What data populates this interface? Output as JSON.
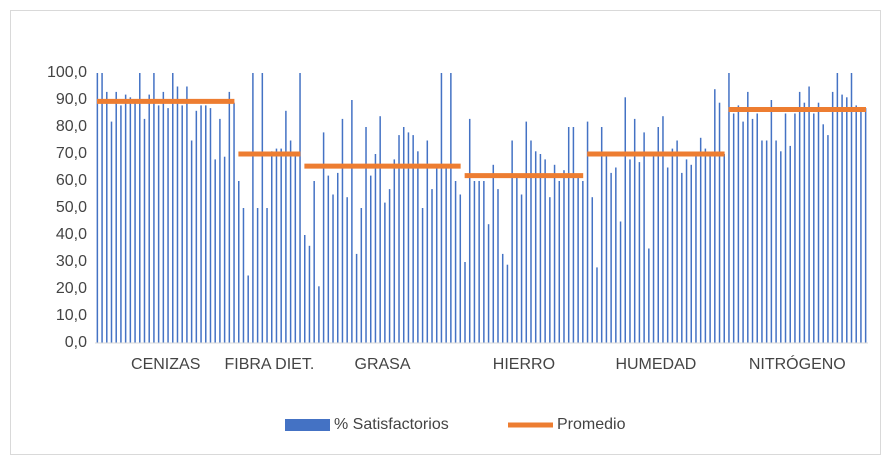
{
  "chart_data": {
    "type": "bar",
    "categories": [
      "CENIZAS",
      "FIBRA DIET.",
      "GRASA",
      "HIERRO",
      "HUMEDAD",
      "NITRÓGENO"
    ],
    "series": [
      {
        "name": "% Satisfactorios",
        "color": "#4472c4",
        "values": [
          [
            100,
            100,
            93,
            82,
            93,
            88,
            92,
            91,
            90,
            100,
            83,
            92,
            100,
            88,
            93,
            87,
            100,
            95,
            88,
            95,
            75,
            86,
            88,
            88,
            87,
            68,
            83,
            69,
            93,
            89
          ],
          [
            60,
            50,
            25,
            100,
            50,
            100,
            50,
            71,
            72,
            72,
            86,
            75,
            70,
            100
          ],
          [
            40,
            36,
            60,
            21,
            78,
            62,
            55,
            63,
            83,
            54,
            90,
            33,
            50,
            80,
            62,
            70,
            84,
            52,
            57,
            68,
            77,
            80,
            78,
            77,
            71,
            50,
            75,
            57,
            65,
            100,
            65,
            100,
            60,
            55
          ],
          [
            30,
            83,
            60,
            60,
            60,
            44,
            66,
            57,
            33,
            29,
            75,
            62,
            55,
            82,
            75,
            71,
            70,
            68,
            54,
            66,
            60,
            64,
            80,
            80,
            62,
            60
          ],
          [
            82,
            54,
            28,
            80,
            70,
            63,
            65,
            45,
            91,
            68,
            83,
            67,
            78,
            35,
            70,
            80,
            84,
            65,
            72,
            75,
            63,
            68,
            66,
            70,
            76,
            72,
            70,
            94,
            89,
            70
          ],
          [
            100,
            85,
            88,
            82,
            93,
            83,
            85,
            75,
            75,
            90,
            75,
            71,
            85,
            73,
            85,
            93,
            89,
            95,
            85,
            89,
            81,
            77,
            93,
            100,
            92,
            91,
            100,
            88,
            86,
            87
          ]
        ]
      },
      {
        "name": "Promedio",
        "type": "line",
        "color": "#ed7d31",
        "values": [
          89.5,
          70,
          65.5,
          62,
          70,
          86.5
        ]
      }
    ],
    "ylim": [
      0,
      100
    ],
    "yticks": [
      {
        "value": 0,
        "label": "0,0"
      },
      {
        "value": 10,
        "label": "10,0"
      },
      {
        "value": 20,
        "label": "20,0"
      },
      {
        "value": 30,
        "label": "30,0"
      },
      {
        "value": 40,
        "label": "40,0"
      },
      {
        "value": 50,
        "label": "50,0"
      },
      {
        "value": 60,
        "label": "60,0"
      },
      {
        "value": 70,
        "label": "70,0"
      },
      {
        "value": 80,
        "label": "80,0"
      },
      {
        "value": 90,
        "label": "90,0"
      },
      {
        "value": 100,
        "label": "100,0"
      }
    ],
    "legend": "bottom"
  }
}
